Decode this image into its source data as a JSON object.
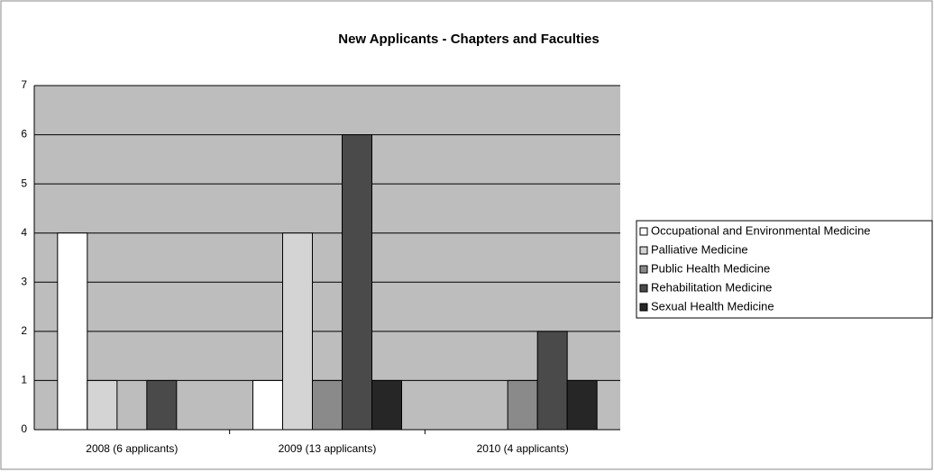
{
  "chart_data": {
    "type": "bar",
    "title": "New Applicants - Chapters and Faculties",
    "categories": [
      "2008 (6 applicants)",
      "2009 (13 applicants)",
      "2010 (4 applicants)"
    ],
    "series": [
      {
        "name": "Occupational and Environmental Medicine",
        "color": "#ffffff",
        "values": [
          4,
          1,
          0
        ]
      },
      {
        "name": "Palliative Medicine",
        "color": "#d4d4d4",
        "values": [
          1,
          4,
          0
        ]
      },
      {
        "name": "Public Health Medicine",
        "color": "#8a8a8a",
        "values": [
          0,
          1,
          1
        ]
      },
      {
        "name": "Rehabilitation Medicine",
        "color": "#4a4a4a",
        "values": [
          1,
          6,
          2
        ]
      },
      {
        "name": "Sexual Health Medicine",
        "color": "#262626",
        "values": [
          0,
          1,
          1
        ]
      }
    ],
    "ylim": [
      0,
      7
    ],
    "yticks": [
      0,
      1,
      2,
      3,
      4,
      5,
      6,
      7
    ],
    "grid": true,
    "legend": "right"
  }
}
